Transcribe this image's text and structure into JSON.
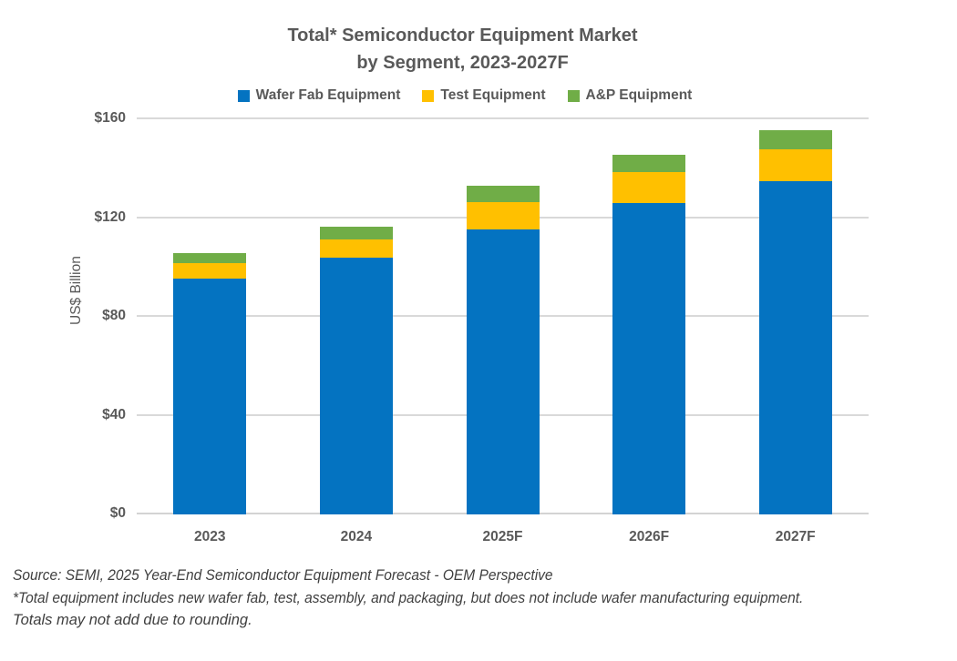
{
  "title": {
    "line1": "Total* Semiconductor Equipment Market",
    "line2": "by Segment, 2023-2027F"
  },
  "chart_data": {
    "type": "bar",
    "stacked": true,
    "title": "Total* Semiconductor Equipment Market by Segment, 2023-2027F",
    "categories": [
      "2023",
      "2024",
      "2025F",
      "2026F",
      "2027F"
    ],
    "series": [
      {
        "name": "Wafer Fab Equipment",
        "color": "#0473C1",
        "values": [
          95.5,
          104,
          115.5,
          126,
          135
        ]
      },
      {
        "name": "Test Equipment",
        "color": "#FFC000",
        "values": [
          6.2,
          7.5,
          11,
          12.5,
          13
        ]
      },
      {
        "name": "A&P Equipment",
        "color": "#70AD47",
        "values": [
          4.3,
          5,
          6.5,
          7,
          7.5
        ]
      }
    ],
    "totals_approx": [
      106,
      116.5,
      133,
      145.5,
      155.5
    ],
    "xlabel": "",
    "ylabel": "US$ Billion",
    "ylim": [
      0,
      160
    ],
    "yticks": [
      {
        "value": 0,
        "label": "$0"
      },
      {
        "value": 40,
        "label": "$40"
      },
      {
        "value": 80,
        "label": "$80"
      },
      {
        "value": 120,
        "label": "$120"
      },
      {
        "value": 160,
        "label": "$160"
      }
    ],
    "grid": true,
    "legend_position": "top",
    "gridline_color": "#D9D9D9",
    "text_color": "#595959"
  },
  "footnotes": {
    "source": "Source: SEMI, 2025 Year-End Semiconductor Equipment Forecast - OEM Perspective",
    "note1": "*Total equipment includes new wafer fab, test, assembly, and packaging, but does not include wafer manufacturing equipment.",
    "note2": "Totals may not add due to rounding."
  }
}
